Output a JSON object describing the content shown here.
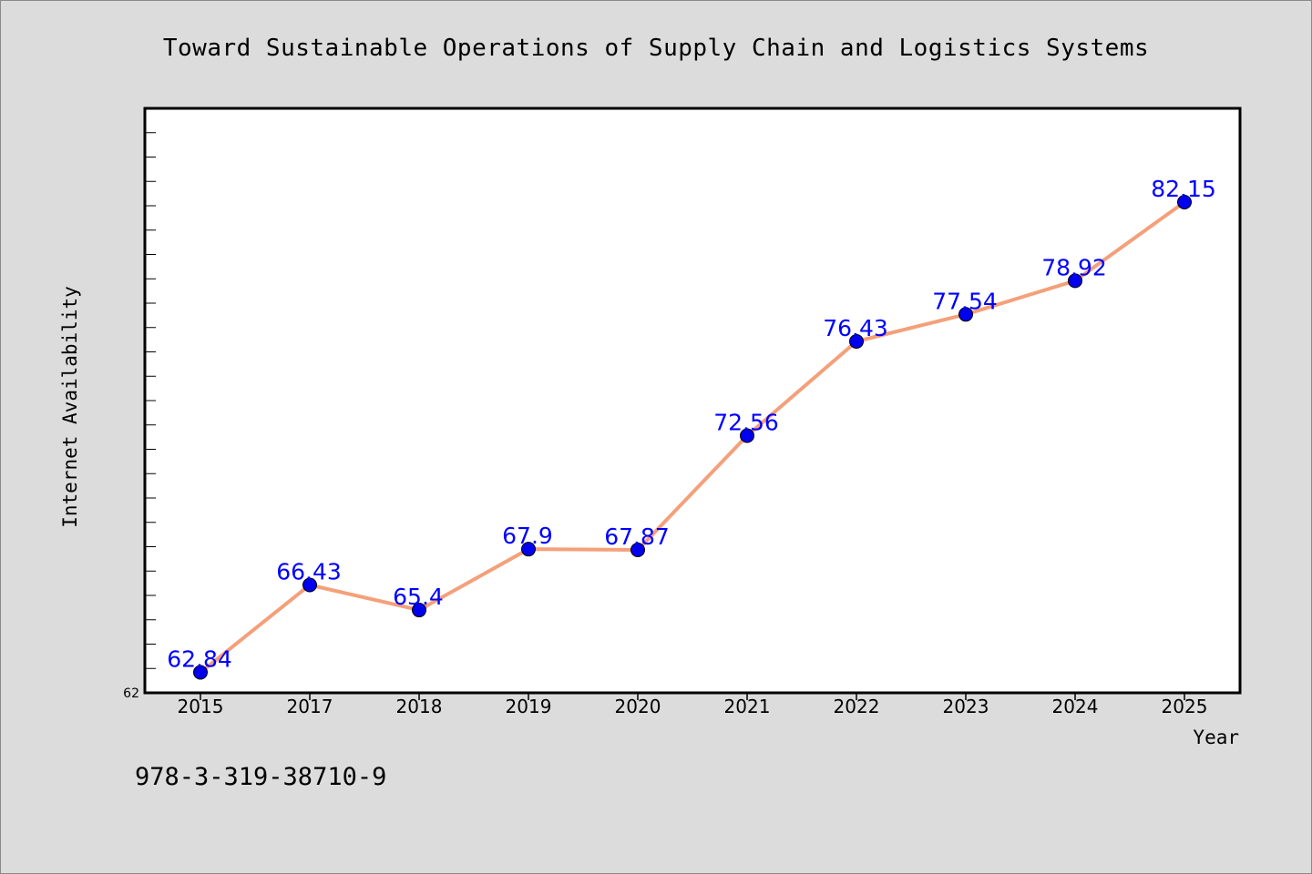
{
  "chart_data": {
    "type": "line",
    "title": "Toward Sustainable Operations of Supply Chain and Logistics Systems",
    "xlabel": "Year",
    "ylabel": "Internet Availability",
    "categories": [
      "2015",
      "2017",
      "2018",
      "2019",
      "2020",
      "2021",
      "2022",
      "2023",
      "2024",
      "2025"
    ],
    "series": [
      {
        "values": [
          62.84,
          66.43,
          65.4,
          67.9,
          67.87,
          72.56,
          76.43,
          77.54,
          78.92,
          82.15
        ],
        "labels": [
          "62.84",
          "66.43",
          "65.4",
          "67.9",
          "67.87",
          "72.56",
          "76.43",
          "77.54",
          "78.92",
          "82.15"
        ],
        "line_color": "#f4a07a",
        "marker_color": "#0000ee"
      }
    ],
    "ylim": [
      62,
      86
    ],
    "y_tick_labels": [
      "62"
    ],
    "grid": false,
    "legend": "none"
  },
  "footer": {
    "isbn": "978-3-319-38710-9"
  }
}
